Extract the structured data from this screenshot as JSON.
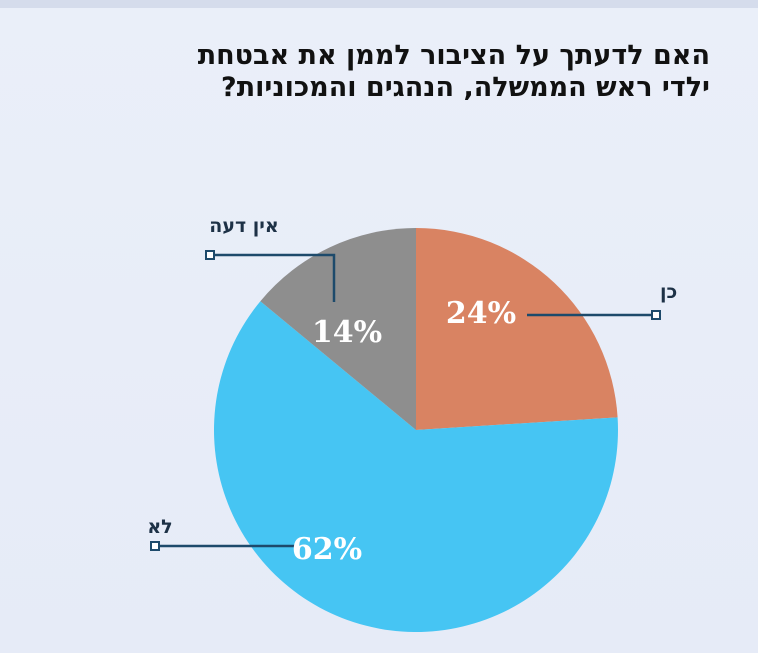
{
  "chart_data": {
    "type": "pie",
    "title": "האם לדעתך על הציבור לממן את אבטחת\nילדי ראש הממשלה, הנהגים והמכוניות?",
    "categories": [
      "כן",
      "לא",
      "אין דעה"
    ],
    "values": [
      24,
      62,
      14
    ],
    "value_labels": [
      "24%",
      "62%",
      "14%"
    ],
    "colors": [
      "#d98362",
      "#46c5f3",
      "#8e8e8e"
    ],
    "legend": "callout labels"
  },
  "colors": {
    "background": "#e8edf8",
    "leader": "#1d4a6b",
    "label_text": "#1d3146"
  }
}
